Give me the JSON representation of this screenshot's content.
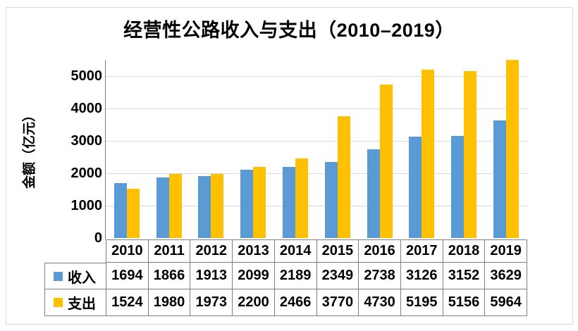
{
  "chart_data": {
    "type": "bar",
    "title": "经营性公路收入与支出（2010–2019）",
    "xlabel": "",
    "ylabel": "金额（亿元）",
    "categories": [
      "2010",
      "2011",
      "2012",
      "2013",
      "2014",
      "2015",
      "2016",
      "2017",
      "2018",
      "2019"
    ],
    "series": [
      {
        "name": "收入",
        "color": "#5B9BD5",
        "values": [
          1694,
          1866,
          1913,
          2099,
          2189,
          2349,
          2738,
          3126,
          3152,
          3629
        ]
      },
      {
        "name": "支出",
        "color": "#FFC000",
        "values": [
          1524,
          1980,
          1973,
          2200,
          2466,
          3770,
          4730,
          5195,
          5156,
          5964
        ]
      }
    ],
    "y_ticks": [
      0,
      1000,
      2000,
      3000,
      4000,
      5000
    ],
    "ylim": [
      0,
      5500
    ],
    "grid": true,
    "data_table": true,
    "legend_position": "data-table-left"
  },
  "colors": {
    "bar_income": "#5B9BD5",
    "bar_expense": "#FFC000",
    "gridline": "#D9D9D9",
    "axis_line": "#808080",
    "table_border": "#808080",
    "frame_border": "#D9D9D9",
    "text": "#000000",
    "background": "#FFFFFF"
  }
}
